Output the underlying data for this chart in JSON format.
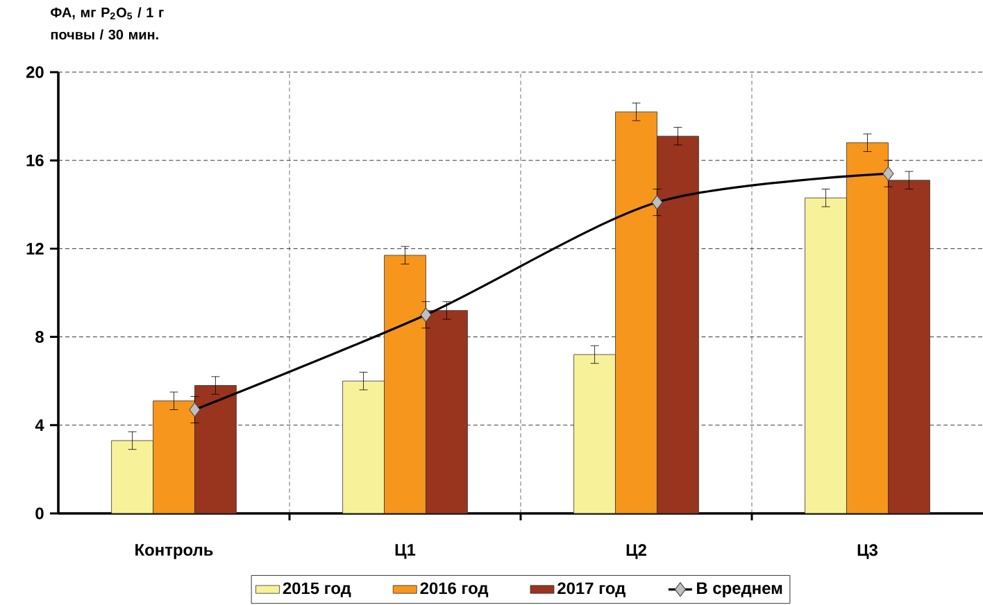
{
  "chart_data": {
    "type": "bar",
    "ylabel": "ФА, мг P$_{2}$O$_{5}$ / 1 г почвы / 30 мин.",
    "categories": [
      "Контроль",
      "Ц1",
      "Ц2",
      "Ц3"
    ],
    "series": [
      {
        "name": "2015 год",
        "color": "#f7f29a",
        "values": [
          3.3,
          6.0,
          7.2,
          14.3
        ],
        "errors": [
          0.4,
          0.4,
          0.4,
          0.4
        ]
      },
      {
        "name": "2016 год",
        "color": "#f7961d",
        "values": [
          5.1,
          11.7,
          18.2,
          16.8
        ],
        "errors": [
          0.4,
          0.4,
          0.4,
          0.4
        ]
      },
      {
        "name": "2017 год",
        "color": "#99341f",
        "values": [
          5.8,
          9.2,
          17.1,
          15.1
        ],
        "errors": [
          0.4,
          0.4,
          0.4,
          0.4
        ]
      },
      {
        "name": "В среднем",
        "type": "line",
        "color": "#000000",
        "marker": "diamond",
        "values": [
          4.7,
          9.0,
          14.1,
          15.4
        ],
        "errors": [
          0.6,
          0.6,
          0.6,
          0.6
        ]
      }
    ],
    "ylim": [
      0,
      20
    ],
    "yticks": [
      0,
      4,
      8,
      12,
      16,
      20
    ],
    "grid": true,
    "legend": "bottom"
  }
}
